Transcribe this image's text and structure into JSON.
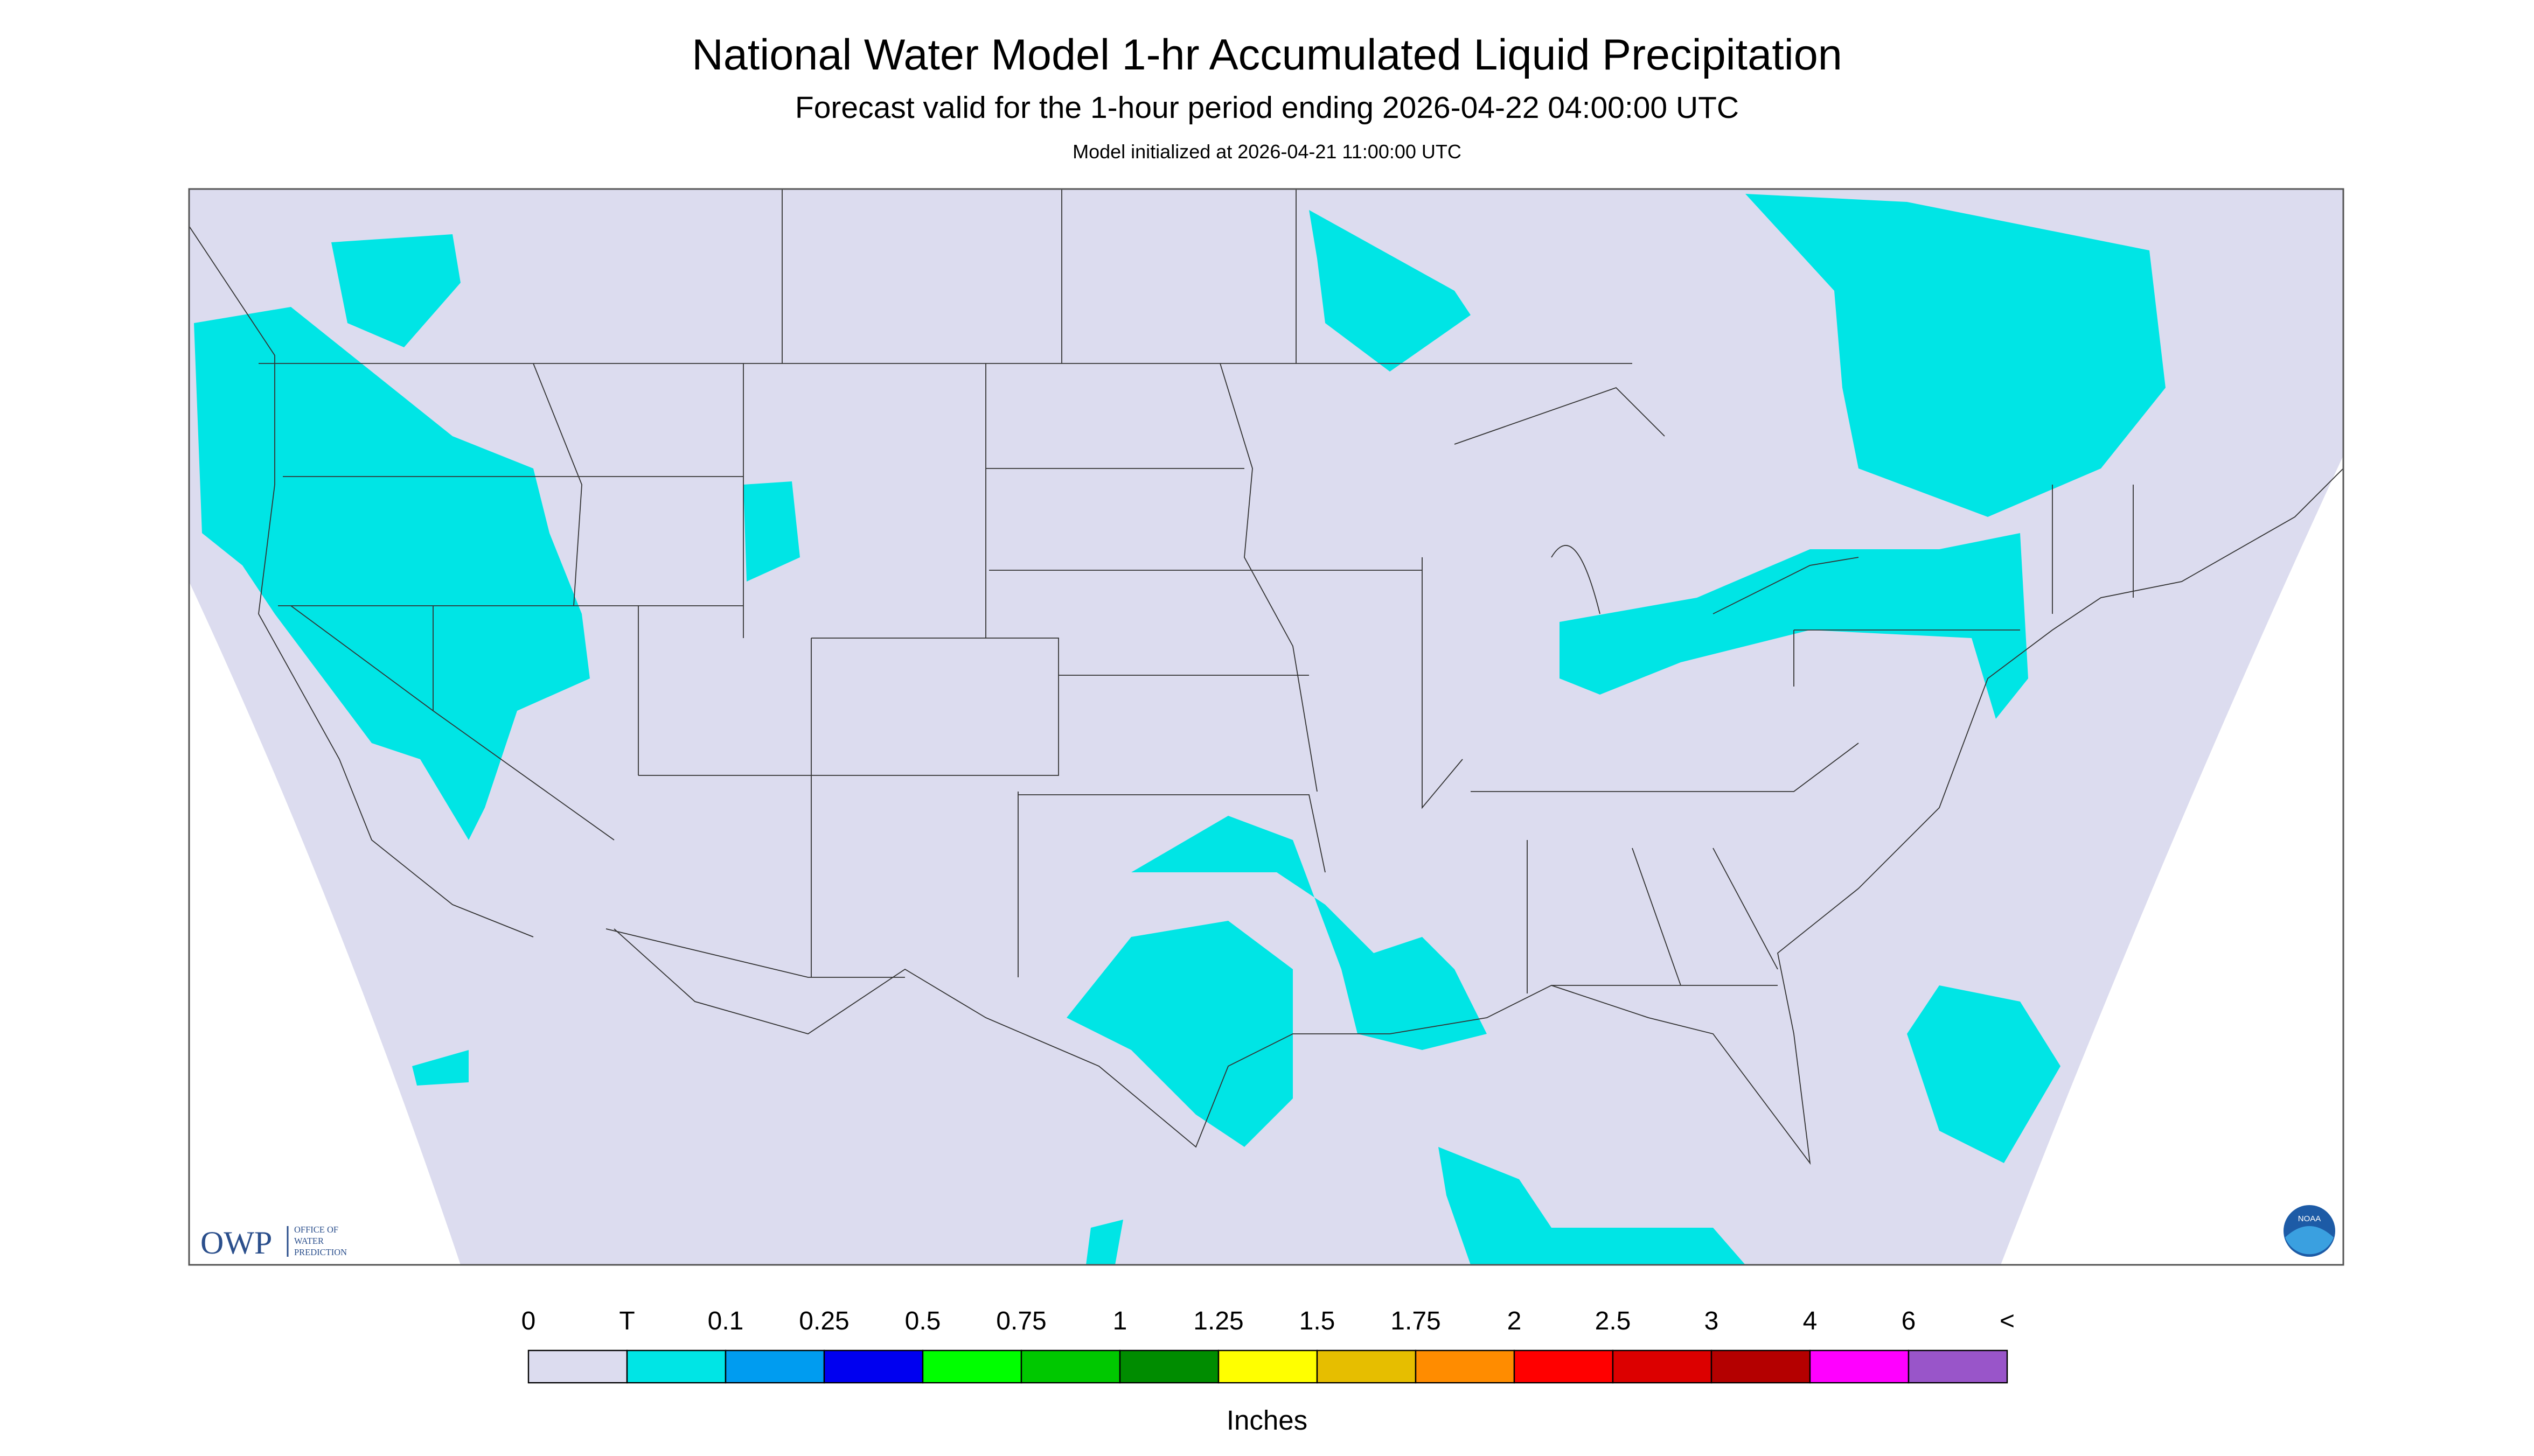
{
  "header": {
    "title": "National Water Model 1-hr Accumulated Liquid Precipitation",
    "subtitle": "Forecast valid for the 1-hour period ending 2026-04-22 04:00:00 UTC",
    "init": "Model initialized at 2026-04-21 11:00:00 UTC"
  },
  "legend": {
    "labels": [
      "0",
      "T",
      "0.1",
      "0.25",
      "0.5",
      "0.75",
      "1",
      "1.25",
      "1.5",
      "1.75",
      "2",
      "2.5",
      "3",
      "4",
      "6",
      "<"
    ],
    "colors": [
      "#dcdcef",
      "#00e5e5",
      "#009cf0",
      "#0000f0",
      "#00ff00",
      "#00c800",
      "#008c00",
      "#ffff00",
      "#e6be00",
      "#ff8c00",
      "#ff0000",
      "#dc0000",
      "#b40000",
      "#ff00ff",
      "#9955c9"
    ],
    "unit": "Inches"
  },
  "logos": {
    "owp": "OWP",
    "owp_name": [
      "OFFICE OF",
      "WATER",
      "PREDICTION"
    ],
    "noaa": "NOAA"
  }
}
